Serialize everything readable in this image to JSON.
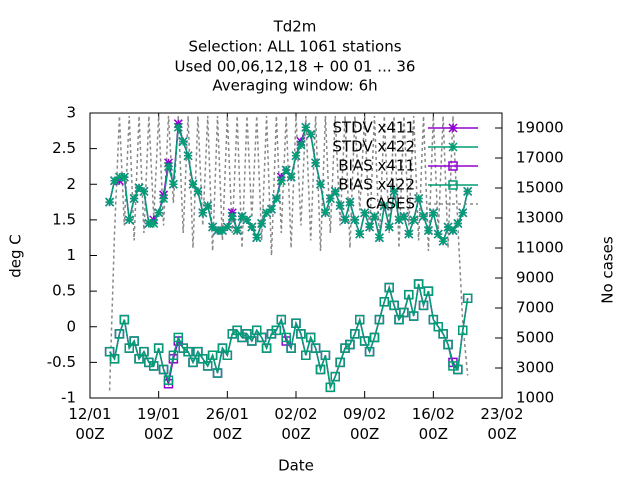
{
  "chart_data": {
    "type": "line",
    "title": [
      "Td2m",
      "Selection: ALL   1061 stations",
      "Used  00,06,12,18 + 00 01 ... 36",
      "Averaging window:  6h"
    ],
    "xlabel": "Date",
    "ylabel": "deg C",
    "y2label": "No cases",
    "x": [
      "14/01 00Z",
      "14/01 12Z",
      "15/01 00Z",
      "15/01 12Z",
      "16/01 00Z",
      "16/01 12Z",
      "17/01 00Z",
      "17/01 12Z",
      "18/01 00Z",
      "18/01 12Z",
      "19/01 00Z",
      "19/01 12Z",
      "20/01 00Z",
      "20/01 12Z",
      "21/01 00Z",
      "21/01 12Z",
      "22/01 00Z",
      "22/01 12Z",
      "23/01 00Z",
      "23/01 12Z",
      "24/01 00Z",
      "24/01 12Z",
      "25/01 00Z",
      "25/01 12Z",
      "26/01 00Z",
      "26/01 12Z",
      "27/01 00Z",
      "27/01 12Z",
      "28/01 00Z",
      "28/01 12Z",
      "29/01 00Z",
      "29/01 12Z",
      "30/01 00Z",
      "30/01 12Z",
      "31/01 00Z",
      "31/01 12Z",
      "01/02 00Z",
      "01/02 12Z",
      "02/02 00Z",
      "02/02 12Z",
      "03/02 00Z",
      "03/02 12Z",
      "04/02 00Z",
      "04/02 12Z",
      "05/02 00Z",
      "05/02 12Z",
      "06/02 00Z",
      "06/02 12Z",
      "07/02 00Z",
      "07/02 12Z",
      "08/02 00Z",
      "08/02 12Z",
      "09/02 00Z",
      "09/02 12Z",
      "10/02 00Z",
      "10/02 12Z",
      "11/02 00Z",
      "11/02 12Z",
      "12/02 00Z",
      "12/02 12Z",
      "13/02 00Z",
      "13/02 12Z",
      "14/02 00Z",
      "14/02 12Z",
      "15/02 00Z",
      "15/02 12Z",
      "16/02 00Z",
      "16/02 12Z",
      "17/02 00Z",
      "17/02 12Z",
      "18/02 00Z",
      "18/02 12Z",
      "19/02 00Z",
      "19/02 12Z"
    ],
    "xlim": [
      "12/01 00Z",
      "23/02 00Z"
    ],
    "xticks": [
      {
        "value": "12/01 00Z",
        "label": "12/01\n00Z"
      },
      {
        "value": "19/01 00Z",
        "label": "19/01\n00Z"
      },
      {
        "value": "26/01 00Z",
        "label": "26/01\n00Z"
      },
      {
        "value": "02/02 00Z",
        "label": "02/02\n00Z"
      },
      {
        "value": "09/02 00Z",
        "label": "09/02\n00Z"
      },
      {
        "value": "16/02 00Z",
        "label": "16/02\n00Z"
      },
      {
        "value": "23/02 00Z",
        "label": "23/02\n00Z"
      }
    ],
    "ylim": [
      -1,
      3
    ],
    "yticks": [
      -1,
      -0.5,
      0,
      0.5,
      1,
      1.5,
      2,
      2.5,
      3
    ],
    "y2lim": [
      1000,
      20000
    ],
    "y2ticks": [
      1000,
      3000,
      5000,
      7000,
      9000,
      11000,
      13000,
      15000,
      17000,
      19000
    ],
    "legend": "top right",
    "series": [
      {
        "name": "STDV x411",
        "color": "#9400d3",
        "marker": "star",
        "values": [
          1.75,
          2.05,
          2.05,
          2.1,
          1.5,
          1.8,
          1.95,
          1.9,
          1.45,
          1.5,
          1.6,
          1.85,
          2.3,
          2.0,
          2.85,
          2.6,
          2.4,
          2.0,
          1.9,
          1.6,
          1.7,
          1.4,
          1.35,
          1.35,
          1.4,
          1.6,
          1.35,
          1.55,
          1.5,
          1.4,
          1.25,
          1.45,
          1.6,
          1.65,
          1.8,
          2.1,
          2.2,
          2.1,
          2.4,
          2.6,
          2.8,
          2.7,
          2.3,
          2.0,
          1.6,
          1.8,
          1.9,
          1.7,
          1.5,
          1.75,
          1.5,
          1.3,
          1.6,
          1.4,
          1.55,
          1.25,
          1.7,
          1.4,
          1.9,
          1.5,
          1.55,
          1.3,
          1.5,
          1.8,
          1.55,
          1.35,
          1.6,
          1.3,
          1.2,
          1.4,
          1.35,
          1.45,
          1.6,
          1.9
        ]
      },
      {
        "name": "STDV x422",
        "color": "#009e73",
        "marker": "star",
        "values": [
          1.75,
          2.05,
          2.1,
          2.1,
          1.5,
          1.8,
          1.95,
          1.9,
          1.45,
          1.45,
          1.6,
          1.8,
          2.25,
          2.0,
          2.8,
          2.6,
          2.4,
          2.0,
          1.9,
          1.6,
          1.7,
          1.4,
          1.35,
          1.35,
          1.4,
          1.55,
          1.35,
          1.55,
          1.5,
          1.4,
          1.25,
          1.45,
          1.6,
          1.65,
          1.8,
          2.05,
          2.2,
          2.1,
          2.4,
          2.55,
          2.8,
          2.7,
          2.3,
          2.0,
          1.6,
          1.8,
          1.9,
          1.7,
          1.5,
          1.75,
          1.5,
          1.3,
          1.6,
          1.4,
          1.55,
          1.25,
          1.7,
          1.4,
          1.9,
          1.5,
          1.55,
          1.3,
          1.5,
          1.8,
          1.55,
          1.35,
          1.6,
          1.3,
          1.2,
          1.4,
          1.35,
          1.45,
          1.6,
          1.9
        ]
      },
      {
        "name": "BIAS x411",
        "color": "#9400d3",
        "marker": "square",
        "values": [
          -0.35,
          -0.45,
          -0.1,
          0.1,
          -0.3,
          -0.2,
          -0.45,
          -0.35,
          -0.5,
          -0.55,
          -0.3,
          -0.6,
          -0.8,
          -0.45,
          -0.2,
          -0.3,
          -0.35,
          -0.5,
          -0.35,
          -0.45,
          -0.55,
          -0.4,
          -0.65,
          -0.3,
          -0.4,
          -0.1,
          -0.05,
          -0.15,
          -0.1,
          -0.2,
          -0.05,
          -0.15,
          -0.3,
          -0.1,
          -0.05,
          0.1,
          -0.2,
          -0.3,
          0.05,
          -0.1,
          -0.4,
          -0.15,
          -0.3,
          -0.6,
          -0.4,
          -0.85,
          -0.7,
          -0.5,
          -0.3,
          -0.25,
          -0.1,
          0.1,
          -0.2,
          -0.35,
          -0.15,
          0.1,
          0.35,
          0.55,
          0.3,
          0.1,
          0.2,
          0.45,
          0.15,
          0.6,
          0.3,
          0.5,
          0.1,
          0.0,
          -0.1,
          -0.25,
          -0.5,
          -0.6,
          -0.05,
          0.4
        ]
      },
      {
        "name": "BIAS x422",
        "color": "#009e73",
        "marker": "square",
        "values": [
          -0.35,
          -0.45,
          -0.1,
          0.1,
          -0.3,
          -0.2,
          -0.45,
          -0.35,
          -0.5,
          -0.55,
          -0.3,
          -0.6,
          -0.75,
          -0.4,
          -0.15,
          -0.3,
          -0.35,
          -0.5,
          -0.35,
          -0.45,
          -0.55,
          -0.4,
          -0.65,
          -0.3,
          -0.4,
          -0.1,
          -0.05,
          -0.15,
          -0.1,
          -0.2,
          -0.05,
          -0.15,
          -0.3,
          -0.1,
          -0.05,
          0.1,
          -0.15,
          -0.3,
          0.05,
          -0.1,
          -0.4,
          -0.15,
          -0.3,
          -0.6,
          -0.4,
          -0.85,
          -0.7,
          -0.5,
          -0.3,
          -0.25,
          -0.1,
          0.1,
          -0.2,
          -0.35,
          -0.15,
          0.1,
          0.35,
          0.55,
          0.3,
          0.1,
          0.2,
          0.45,
          0.15,
          0.6,
          0.3,
          0.5,
          0.1,
          0.0,
          -0.1,
          -0.25,
          -0.55,
          -0.6,
          -0.05,
          0.4
        ]
      },
      {
        "name": "CASES",
        "color": "#888888",
        "marker": "none",
        "axis": "y2",
        "values": [
          1500,
          12000,
          19800,
          12500,
          19800,
          11500,
          19800,
          12000,
          19800,
          13000,
          19800,
          12500,
          19800,
          14000,
          19800,
          12000,
          19800,
          11000,
          19800,
          12500,
          19800,
          10800,
          19800,
          11500,
          19800,
          12000,
          19800,
          11000,
          19800,
          13000,
          19800,
          11500,
          19800,
          10500,
          19800,
          12000,
          19800,
          11000,
          19800,
          12500,
          19800,
          11500,
          19800,
          10800,
          19800,
          12000,
          19800,
          12500,
          19800,
          11000,
          19800,
          13500,
          19800,
          12000,
          19800,
          11500,
          19800,
          12000,
          19800,
          11000,
          19800,
          12500,
          19800,
          11500,
          19800,
          10800,
          19800,
          12000,
          19800,
          11000,
          19800,
          12500,
          6000,
          2500
        ]
      }
    ]
  }
}
